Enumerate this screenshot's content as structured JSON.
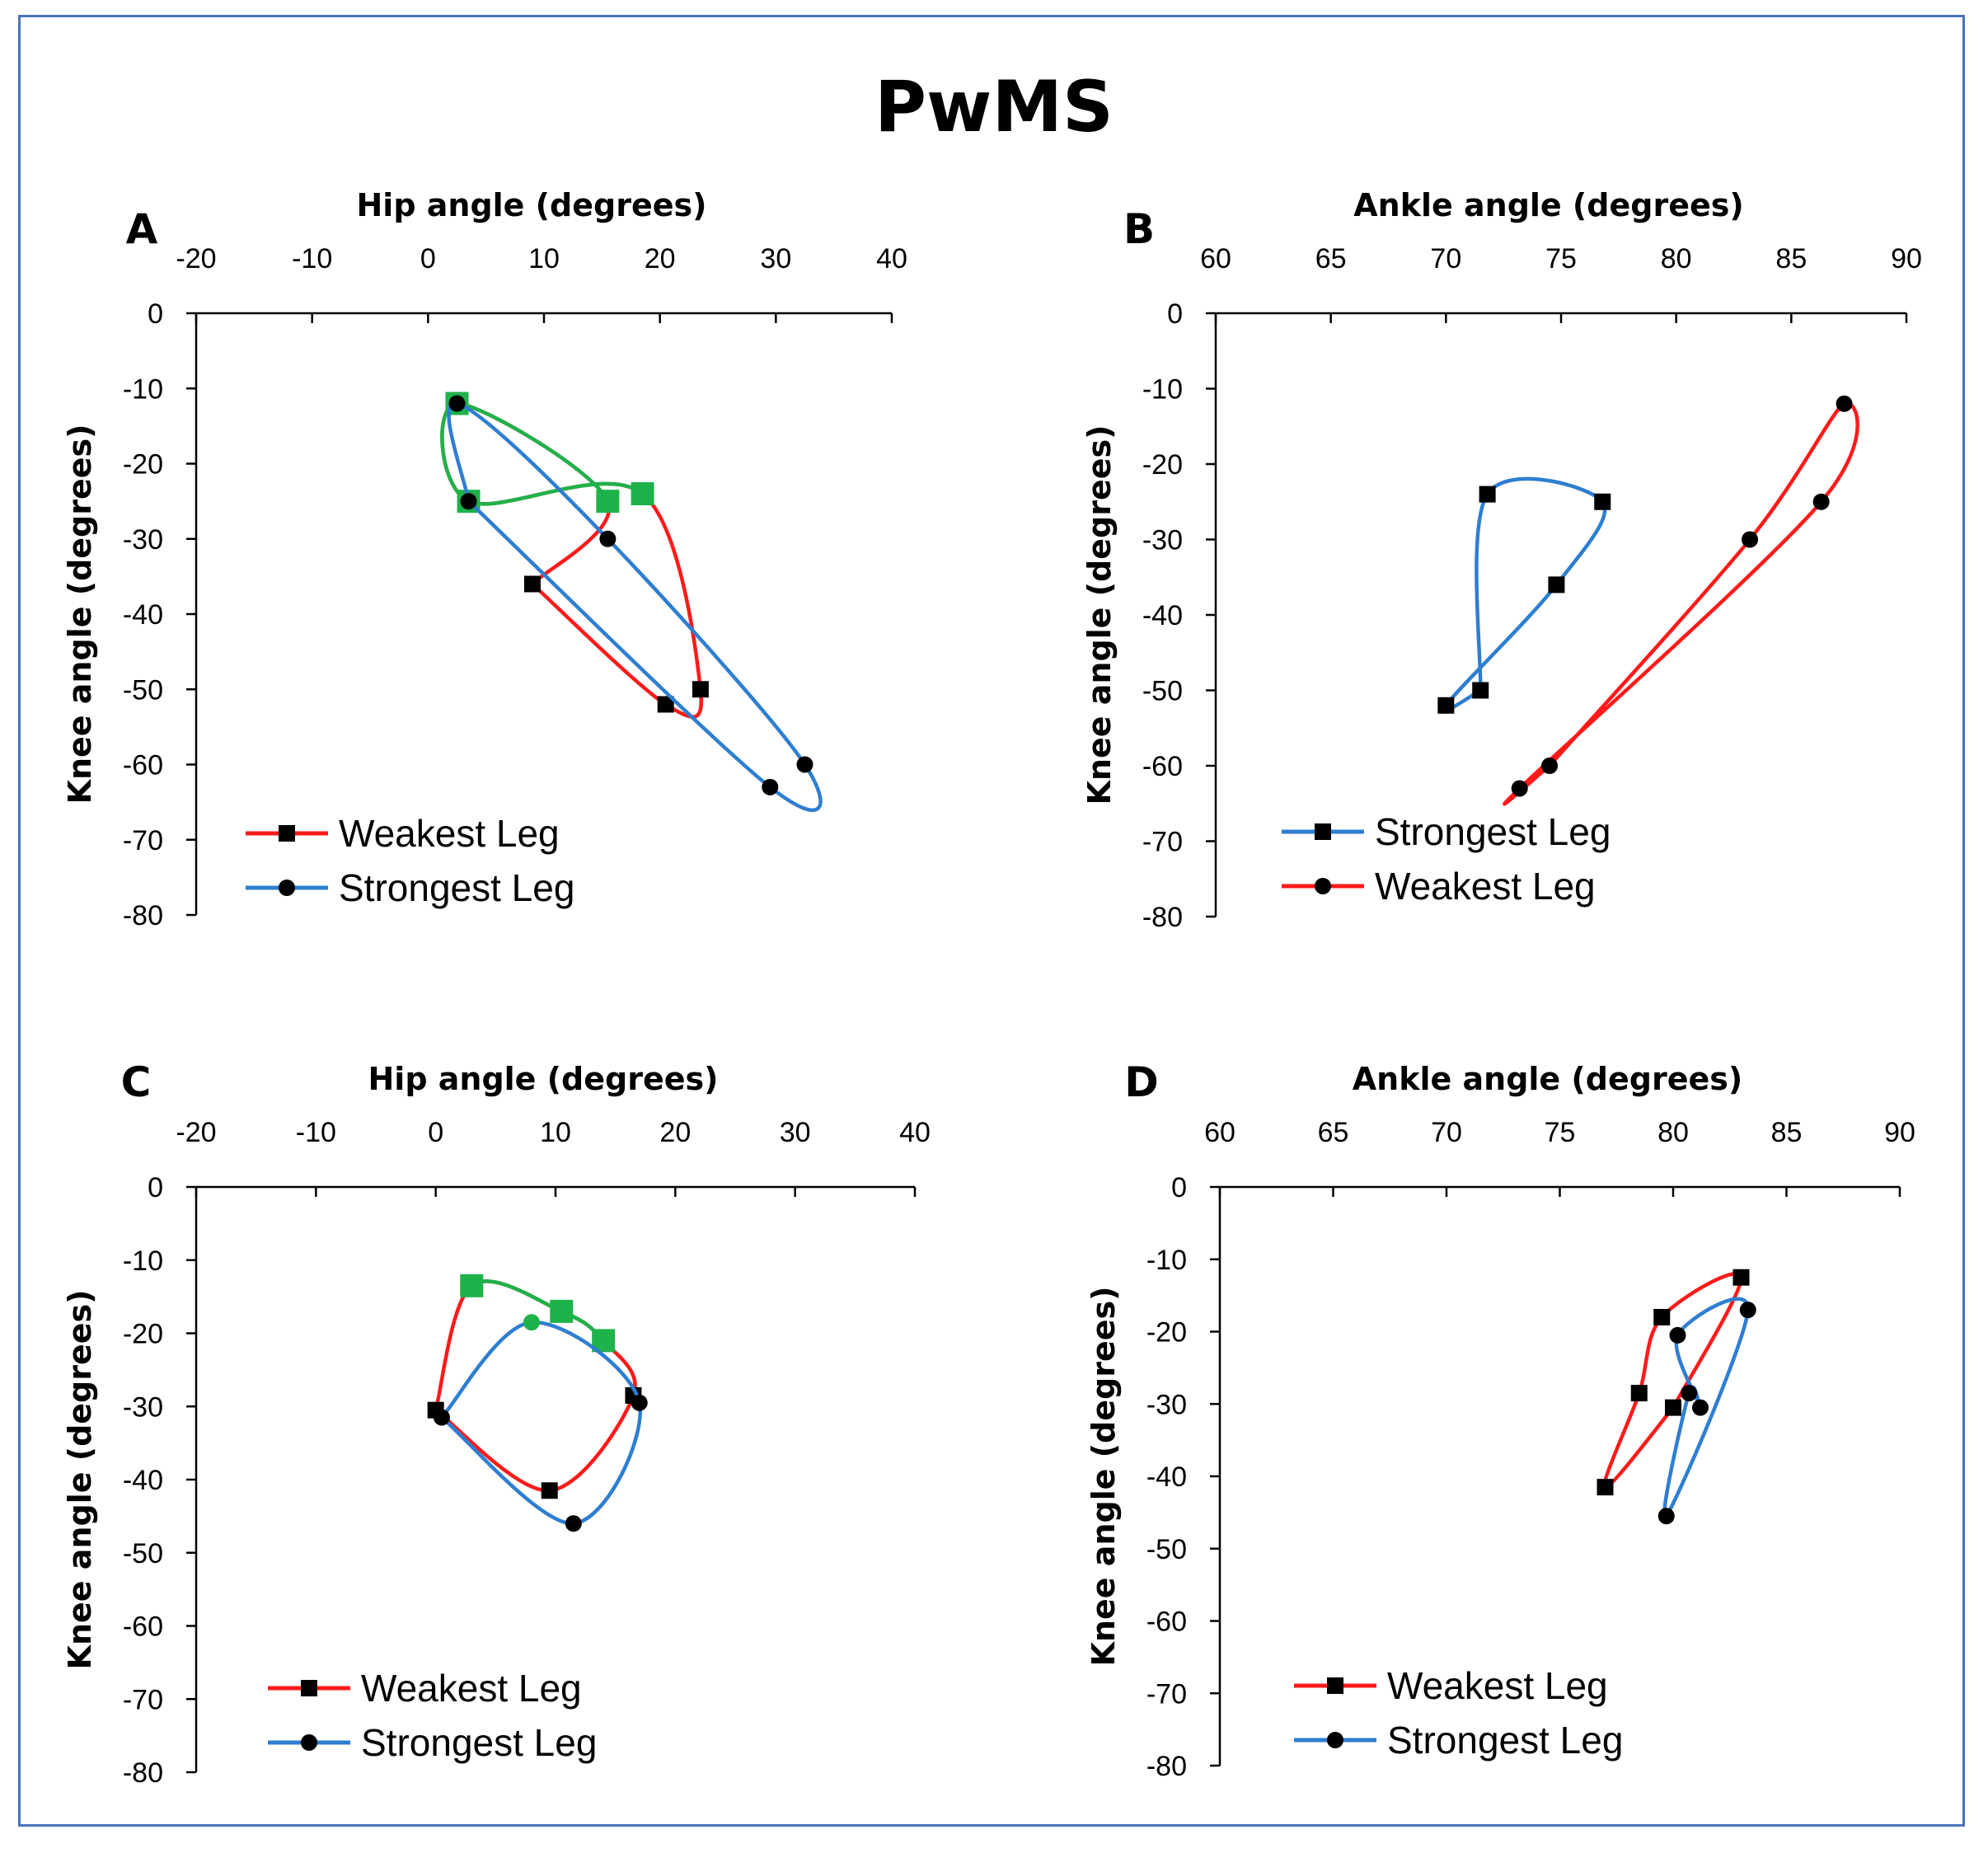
{
  "title": "PwMS",
  "colors": {
    "weakest": "#ff1a1a",
    "strongest": "#2e7ed1",
    "swing": "#1eb24a",
    "frame": "#4a74b8",
    "axis": "#000000"
  },
  "chart_data": [
    {
      "panel": "A",
      "type": "line",
      "xlabel": "Hip angle (degrees)",
      "ylabel": "Knee angle (degrees)",
      "xlim": [
        -20,
        40
      ],
      "ylim": [
        -80,
        0
      ],
      "xticks": [
        "-20",
        "-10",
        "0",
        "10",
        "20",
        "30",
        "40"
      ],
      "yticks": [
        "0",
        "-10",
        "-20",
        "-30",
        "-40",
        "-50",
        "-60",
        "-70",
        "-80"
      ],
      "x_axis_position": "top",
      "grid": false,
      "legend_position": "bottom-left",
      "legend_order": [
        "Weakest Leg",
        "Strongest Leg"
      ],
      "series": [
        {
          "name": "Weakest Leg",
          "marker": "square",
          "color": "red",
          "points": [
            [
              9,
              -36
            ],
            [
              15.5,
              -25
            ],
            [
              2.5,
              -12
            ],
            [
              3.5,
              -25
            ],
            [
              18.5,
              -24
            ],
            [
              23.5,
              -50
            ],
            [
              20.5,
              -52
            ],
            [
              9,
              -36
            ]
          ],
          "swing_points": [
            1,
            2,
            3,
            4
          ]
        },
        {
          "name": "Strongest Leg",
          "marker": "circle",
          "color": "blue",
          "points": [
            [
              3.5,
              -25
            ],
            [
              29.5,
              -63
            ],
            [
              32.5,
              -60
            ],
            [
              15.5,
              -30
            ],
            [
              2.5,
              -12
            ],
            [
              3.5,
              -25
            ]
          ],
          "swing_points": []
        }
      ]
    },
    {
      "panel": "B",
      "type": "line",
      "xlabel": "Ankle angle (degrees)",
      "ylabel": "Knee angle (degrees)",
      "xlim": [
        60,
        90
      ],
      "ylim": [
        -80,
        0
      ],
      "xticks": [
        "60",
        "65",
        "70",
        "75",
        "80",
        "85",
        "90"
      ],
      "yticks": [
        "0",
        "-10",
        "-20",
        "-30",
        "-40",
        "-50",
        "-60",
        "-70",
        "-80"
      ],
      "x_axis_position": "top",
      "grid": false,
      "legend_position": "bottom-left",
      "legend_order": [
        "Strongest Leg",
        "Weakest Leg"
      ],
      "series": [
        {
          "name": "Strongest Leg",
          "marker": "square",
          "color": "blue",
          "points": [
            [
              71.5,
              -50
            ],
            [
              71.8,
              -24
            ],
            [
              76.8,
              -25
            ],
            [
              74.8,
              -36
            ],
            [
              70,
              -52
            ],
            [
              71.5,
              -50
            ]
          ],
          "swing_points": []
        },
        {
          "name": "Weakest Leg",
          "marker": "circle",
          "color": "red",
          "points": [
            [
              74.5,
              -60
            ],
            [
              83.2,
              -30
            ],
            [
              87.3,
              -12
            ],
            [
              86.3,
              -25
            ],
            [
              73.2,
              -63
            ],
            [
              74.5,
              -60
            ]
          ],
          "swing_points": []
        }
      ]
    },
    {
      "panel": "C",
      "type": "line",
      "xlabel": "Hip angle (degrees)",
      "ylabel": "Knee angle (degrees)",
      "xlim": [
        -20,
        40
      ],
      "ylim": [
        -80,
        0
      ],
      "xticks": [
        "-20",
        "-10",
        "0",
        "10",
        "20",
        "30",
        "40"
      ],
      "yticks": [
        "0",
        "-10",
        "-20",
        "-30",
        "-40",
        "-50",
        "-60",
        "-70",
        "-80"
      ],
      "x_axis_position": "top",
      "grid": false,
      "legend_position": "bottom-left",
      "legend_order": [
        "Weakest Leg",
        "Strongest Leg"
      ],
      "series": [
        {
          "name": "Weakest Leg",
          "marker": "square",
          "color": "red",
          "points": [
            [
              0,
              -30.5
            ],
            [
              3,
              -13.5
            ],
            [
              10.5,
              -17
            ],
            [
              14,
              -21
            ],
            [
              16.5,
              -28.5
            ],
            [
              9.5,
              -41.5
            ],
            [
              0,
              -30.5
            ]
          ],
          "swing_points": [
            1,
            2,
            3
          ]
        },
        {
          "name": "Strongest Leg",
          "marker": "circle",
          "color": "blue",
          "points": [
            [
              0.5,
              -31.5
            ],
            [
              8,
              -18.5
            ],
            [
              17,
              -29.5
            ],
            [
              11.5,
              -46
            ],
            [
              0.5,
              -31.5
            ]
          ],
          "swing_points": [
            1
          ]
        }
      ]
    },
    {
      "panel": "D",
      "type": "line",
      "xlabel": "Ankle angle (degrees)",
      "ylabel": "Knee angle (degrees)",
      "xlim": [
        60,
        90
      ],
      "ylim": [
        -80,
        0
      ],
      "xticks": [
        "60",
        "65",
        "70",
        "75",
        "80",
        "85",
        "90"
      ],
      "yticks": [
        "0",
        "-10",
        "-20",
        "-30",
        "-40",
        "-50",
        "-60",
        "-70",
        "-80"
      ],
      "x_axis_position": "top",
      "grid": false,
      "legend_position": "bottom-left",
      "legend_order": [
        "Weakest Leg",
        "Strongest Leg"
      ],
      "series": [
        {
          "name": "Weakest Leg",
          "marker": "square",
          "color": "red",
          "points": [
            [
              80,
              -30.5
            ],
            [
              83,
              -12.5
            ],
            [
              79.5,
              -18
            ],
            [
              78.5,
              -28.5
            ],
            [
              77,
              -41.5
            ],
            [
              80,
              -30.5
            ]
          ],
          "swing_points": []
        },
        {
          "name": "Strongest Leg",
          "marker": "circle",
          "color": "blue",
          "points": [
            [
              81.2,
              -30.5
            ],
            [
              80.2,
              -20.5
            ],
            [
              83.3,
              -17
            ],
            [
              79.7,
              -45.5
            ],
            [
              80.7,
              -28.5
            ],
            [
              81.2,
              -30.5
            ]
          ],
          "swing_points": []
        }
      ]
    }
  ]
}
